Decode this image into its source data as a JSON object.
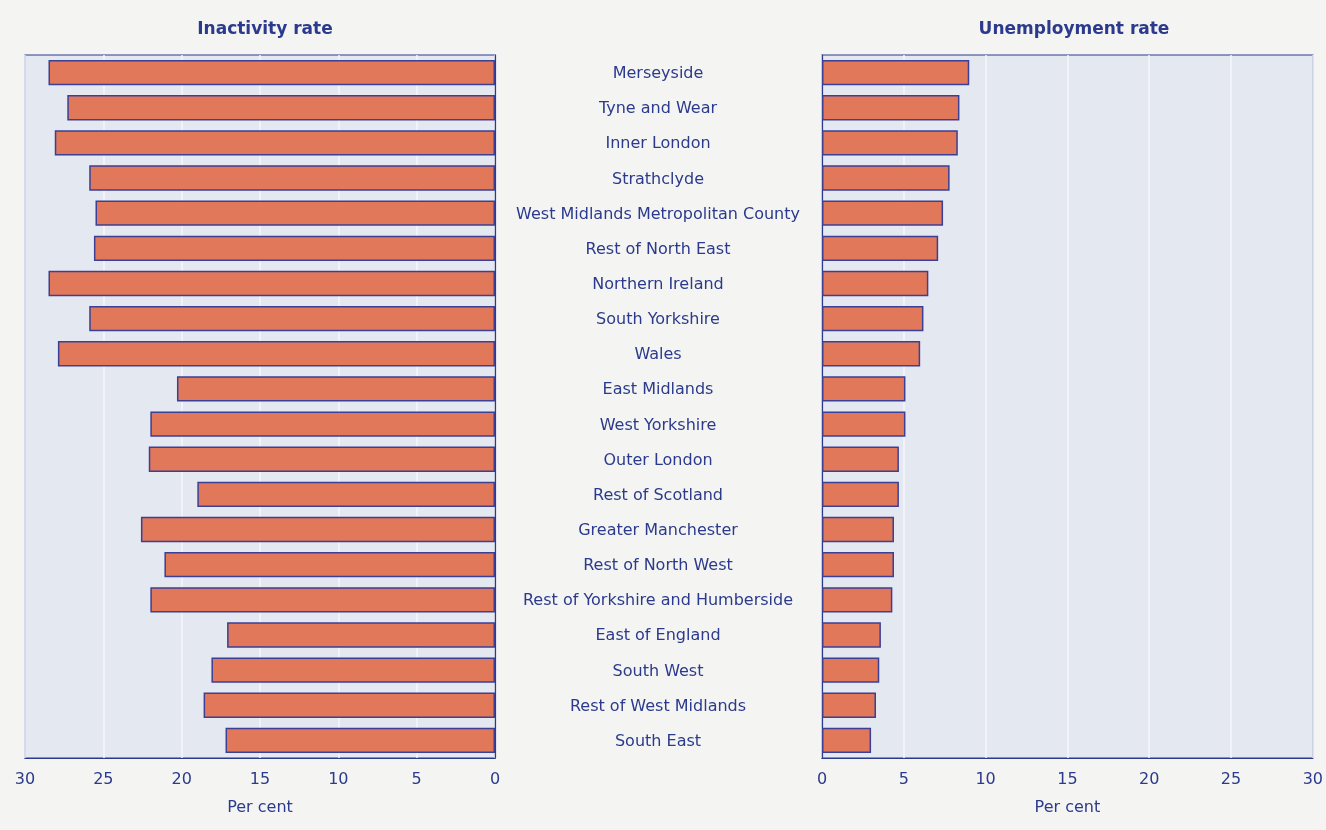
{
  "chart_data": [
    {
      "type": "bar",
      "orientation": "horizontal",
      "title": "Inactivity rate",
      "xlabel": "Per cent",
      "categories": [
        "Merseyside",
        "Tyne and Wear",
        "Inner London",
        "Strathclyde",
        "West Midlands Metropolitan County",
        "Rest of North East",
        "Northern Ireland",
        "South Yorkshire",
        "Wales",
        "East Midlands",
        "West Yorkshire",
        "Outer London",
        "Rest of Scotland",
        "Greater Manchester",
        "Rest of North West",
        "Rest of Yorkshire and Humberside",
        "East of England",
        "South West",
        "Rest of West Midlands",
        "South East"
      ],
      "values": [
        28.5,
        27.3,
        28.1,
        25.9,
        25.5,
        25.6,
        28.5,
        25.9,
        27.9,
        20.3,
        22.0,
        22.1,
        19.0,
        22.6,
        21.1,
        22.0,
        17.1,
        18.1,
        18.6,
        17.2
      ],
      "color": "#e2785a",
      "xlim": [
        30,
        0
      ],
      "xticks": [
        30,
        25,
        20,
        15,
        10,
        5,
        0
      ],
      "grid": "x"
    },
    {
      "type": "bar",
      "orientation": "horizontal",
      "title": "Unemployment rate",
      "xlabel": "Per cent",
      "categories": [
        null,
        null,
        null,
        null,
        null,
        null,
        null,
        null,
        null,
        null,
        null,
        null,
        null,
        null,
        null,
        null,
        null,
        null,
        null,
        null
      ],
      "values": [
        9.0,
        8.4,
        8.3,
        7.8,
        7.4,
        7.1,
        6.5,
        6.2,
        6.0,
        5.1,
        5.1,
        4.7,
        4.7,
        4.4,
        4.4,
        4.3,
        3.6,
        3.5,
        3.3,
        3.0
      ],
      "color": "#e2785a",
      "xlim": [
        0,
        30
      ],
      "xticks": [
        0,
        5,
        10,
        15,
        20,
        25,
        30
      ],
      "grid": "x",
      "tick_labels": "x"
    }
  ]
}
